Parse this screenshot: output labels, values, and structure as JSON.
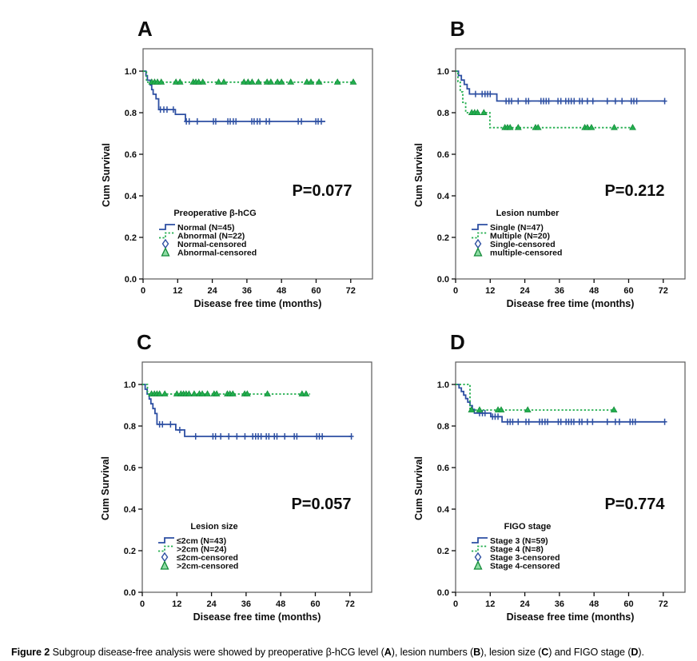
{
  "figure": {
    "caption_segments": [
      {
        "t": "Figure 2",
        "b": 1
      },
      {
        "t": " Subgroup disease-free analysis were showed by preoperative β-hCG level (",
        "b": 0
      },
      {
        "t": "A",
        "b": 1
      },
      {
        "t": "), lesion numbers (",
        "b": 0
      },
      {
        "t": "B",
        "b": 1
      },
      {
        "t": "), lesion size (",
        "b": 0
      },
      {
        "t": "C",
        "b": 1
      },
      {
        "t": ") and FIGO stage (",
        "b": 0
      },
      {
        "t": "D",
        "b": 1
      },
      {
        "t": ").",
        "b": 0
      }
    ]
  },
  "axes": {
    "xlabel": "Disease free time (months)",
    "ylabel": "Cum Survival",
    "xticks": [
      0,
      12,
      24,
      36,
      48,
      60,
      72
    ],
    "yticks": [
      "0.0",
      "0.2",
      "0.4",
      "0.6",
      "0.8",
      "1.0"
    ],
    "xmax_months": 79.5,
    "ylim": [
      0.0,
      1.0
    ],
    "grid": false
  },
  "colors": {
    "blue": "#2d4fa2",
    "green": "#22ae4e",
    "green_dark": "#128a38",
    "box": "#59595b",
    "text": "#0d0d0d"
  },
  "chart_data": [
    {
      "panel": "A",
      "type": "line",
      "subtype": "kaplan-meier",
      "p_label": "P=0.077",
      "legend": {
        "title": "Preoperative β-hCG",
        "items": [
          {
            "label": "Normal (N=45)",
            "type": "line",
            "color": "blue",
            "dash": false
          },
          {
            "label": "Abnormal (N=22)",
            "type": "line",
            "color": "green",
            "dash": true
          },
          {
            "label": "Normal-censored",
            "type": "censor",
            "shape": "diamond",
            "color": "blue"
          },
          {
            "label": "Abnormal-censored",
            "type": "censor",
            "shape": "triangle",
            "color": "green"
          }
        ]
      },
      "series": [
        {
          "name": "Normal (N=45)",
          "color": "blue",
          "dash": false,
          "censor_mark": "plus",
          "steps": [
            [
              0,
              1
            ],
            [
              1,
              0.978
            ],
            [
              1.5,
              0.956
            ],
            [
              2.5,
              0.933
            ],
            [
              3,
              0.911
            ],
            [
              3.5,
              0.889
            ],
            [
              4.5,
              0.867
            ],
            [
              5.4,
              0.815
            ],
            [
              11.2,
              0.792
            ],
            [
              14.7,
              0.758
            ]
          ],
          "end": 63.2,
          "censors": [
            6,
            7.2,
            8.3,
            10.5,
            15,
            16,
            18.8,
            24.4,
            25.2,
            29.4,
            30.2,
            31.3,
            32.2,
            37.7,
            38.5,
            39.6,
            40.5,
            42.7,
            43.8,
            53.8,
            54.9,
            59.9,
            60.7,
            61.8
          ]
        },
        {
          "name": "Abnormal (N=22)",
          "color": "green",
          "dash": true,
          "censor_mark": "triangle",
          "steps": [
            [
              0,
              1
            ],
            [
              1.2,
              0.947
            ]
          ],
          "end": 72.9,
          "censors": [
            3,
            4,
            5,
            6.3,
            11.4,
            12.8,
            17.4,
            18.3,
            19.3,
            20.7,
            26.2,
            28,
            35,
            36.4,
            37.8,
            40,
            43,
            44.3,
            46.6,
            48,
            51.2,
            56.8,
            58.2,
            61,
            67.4,
            72.9
          ]
        }
      ]
    },
    {
      "panel": "B",
      "type": "line",
      "subtype": "kaplan-meier",
      "p_label": "P=0.212",
      "legend": {
        "title": "Lesion number",
        "items": [
          {
            "label": "Single (N=47)",
            "type": "line",
            "color": "blue",
            "dash": false
          },
          {
            "label": "Multiple (N=20)",
            "type": "line",
            "color": "green",
            "dash": true
          },
          {
            "label": "Single-censored",
            "type": "censor",
            "shape": "diamond",
            "color": "blue"
          },
          {
            "label": "multiple-censored",
            "type": "censor",
            "shape": "triangle",
            "color": "green"
          }
        ]
      },
      "series": [
        {
          "name": "Single (N=47)",
          "color": "blue",
          "dash": false,
          "censor_mark": "plus",
          "steps": [
            [
              0,
              1
            ],
            [
              1,
              0.979
            ],
            [
              2,
              0.957
            ],
            [
              3,
              0.936
            ],
            [
              4,
              0.915
            ],
            [
              4.8,
              0.89
            ],
            [
              14.3,
              0.856
            ]
          ],
          "end": 72.5,
          "censors": [
            6.9,
            9.2,
            10.2,
            11.1,
            12,
            17.5,
            18.5,
            19.4,
            21.7,
            24.4,
            25.3,
            29.6,
            30.5,
            31.4,
            32.3,
            35.5,
            36.5,
            38.2,
            39.2,
            40.1,
            41.1,
            43,
            43.9,
            45.7,
            47.6,
            52.6,
            55.4,
            57.7,
            60.9,
            61.8,
            62.8,
            72.5
          ]
        },
        {
          "name": "Multiple (N=20)",
          "color": "green",
          "dash": true,
          "censor_mark": "triangle",
          "steps": [
            [
              0,
              1
            ],
            [
              0.8,
              0.95
            ],
            [
              1.6,
              0.9
            ],
            [
              2.5,
              0.85
            ],
            [
              3.5,
              0.8
            ],
            [
              11.9,
              0.728
            ]
          ],
          "end": 61.8,
          "censors": [
            5.6,
            6.6,
            7.6,
            9.8,
            17.1,
            18,
            18.9,
            21.7,
            27.7,
            28.6,
            44.8,
            45.7,
            47.1,
            55,
            61.4
          ]
        }
      ]
    },
    {
      "panel": "C",
      "type": "line",
      "subtype": "kaplan-meier",
      "p_label": "P=0.057",
      "legend": {
        "title": "Lesion size",
        "items": [
          {
            "label": "≤2cm (N=43)",
            "type": "line",
            "color": "blue",
            "dash": false
          },
          {
            "label": ">2cm (N=24)",
            "type": "line",
            "color": "green",
            "dash": true
          },
          {
            "label": "≤2cm-censored",
            "type": "censor",
            "shape": "diamond",
            "color": "blue"
          },
          {
            "label": ">2cm-censored",
            "type": "censor",
            "shape": "triangle",
            "color": "green"
          }
        ]
      },
      "series": [
        {
          "name": "≤2cm (N=43)",
          "color": "blue",
          "dash": false,
          "censor_mark": "plus",
          "steps": [
            [
              0,
              1
            ],
            [
              1,
              0.977
            ],
            [
              1.7,
              0.954
            ],
            [
              2.4,
              0.93
            ],
            [
              3,
              0.907
            ],
            [
              3.7,
              0.884
            ],
            [
              4.4,
              0.86
            ],
            [
              5.1,
              0.808
            ],
            [
              11.6,
              0.781
            ],
            [
              14.7,
              0.75
            ]
          ],
          "end": 72.6,
          "censors": [
            6,
            7,
            9.8,
            13,
            18.5,
            24.5,
            25.4,
            27.2,
            30,
            32.8,
            35.6,
            38.3,
            39.3,
            40.2,
            41.2,
            43,
            43.9,
            45.8,
            46.7,
            49.4,
            52.7,
            53.6,
            60.5,
            61.4,
            62.4,
            72.5
          ]
        },
        {
          "name": ">2cm (N=24)",
          "color": "green",
          "dash": true,
          "censor_mark": "triangle",
          "steps": [
            [
              0,
              1
            ],
            [
              1.8,
              0.954
            ]
          ],
          "end": 58.2,
          "censors": [
            3.2,
            4.2,
            5.1,
            6,
            7.8,
            12,
            13.4,
            14.3,
            15.2,
            16.2,
            18,
            19.8,
            20.8,
            22.6,
            24.9,
            25.8,
            29.5,
            30.4,
            31.4,
            35.5,
            36.4,
            43.4,
            55.4,
            56.8
          ]
        }
      ]
    },
    {
      "panel": "D",
      "type": "line",
      "subtype": "kaplan-meier",
      "p_label": "P=0.774",
      "legend": {
        "title": "FIGO stage",
        "items": [
          {
            "label": "Stage 3 (N=59)",
            "type": "line",
            "color": "blue",
            "dash": false
          },
          {
            "label": "Stage 4 (N=8)",
            "type": "line",
            "color": "green",
            "dash": true
          },
          {
            "label": "Stage 3-censored",
            "type": "censor",
            "shape": "diamond",
            "color": "blue"
          },
          {
            "label": "Stage 4-censored",
            "type": "censor",
            "shape": "triangle",
            "color": "green"
          }
        ]
      },
      "series": [
        {
          "name": "Stage 3 (N=59)",
          "color": "blue",
          "dash": false,
          "censor_mark": "plus",
          "steps": [
            [
              0,
              1
            ],
            [
              1.2,
              0.983
            ],
            [
              2,
              0.966
            ],
            [
              2.8,
              0.949
            ],
            [
              3.5,
              0.932
            ],
            [
              4.2,
              0.915
            ],
            [
              5,
              0.898
            ],
            [
              5.8,
              0.88
            ],
            [
              6.5,
              0.862
            ],
            [
              12.2,
              0.845
            ],
            [
              16.1,
              0.82
            ]
          ],
          "end": 72.6,
          "censors": [
            8.3,
            9.3,
            10.2,
            12.8,
            13.7,
            14.7,
            18,
            18.9,
            19.8,
            21.7,
            24.4,
            25.4,
            29.1,
            30,
            31,
            31.9,
            35.6,
            36.5,
            38.3,
            39.2,
            40.1,
            41,
            42.9,
            43.8,
            45.7,
            47.5,
            52.6,
            55.4,
            56.8,
            60.5,
            61.4,
            62.3,
            72.5
          ]
        },
        {
          "name": "Stage 4 (N=8)",
          "color": "green",
          "dash": true,
          "censor_mark": "triangle",
          "steps": [
            [
              0,
              1
            ],
            [
              5,
              0.877
            ]
          ],
          "end": 55.4,
          "censors": [
            5.5,
            8.3,
            14.7,
            15.8,
            25,
            54.9
          ]
        }
      ]
    }
  ]
}
